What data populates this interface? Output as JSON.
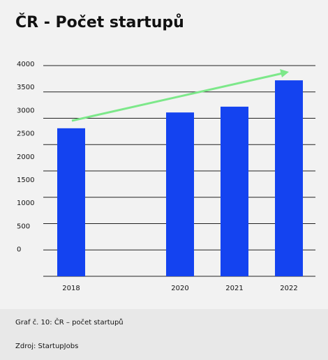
{
  "chart_data": {
    "type": "bar",
    "title": "ČR - Počet startupů",
    "categories": [
      "2018",
      null,
      "2020",
      "2021",
      "2022"
    ],
    "values": [
      2810,
      null,
      3110,
      3220,
      3720
    ],
    "color": "#1443f0",
    "ylim": [
      0,
      4000
    ],
    "yticks": [
      4000,
      3500,
      3000,
      2500,
      2000,
      1500,
      1000,
      500,
      0
    ],
    "grid": true,
    "caption": "Graf č. 10: ČR – počet startupů",
    "source": "Zdroj: StartupJobs"
  }
}
